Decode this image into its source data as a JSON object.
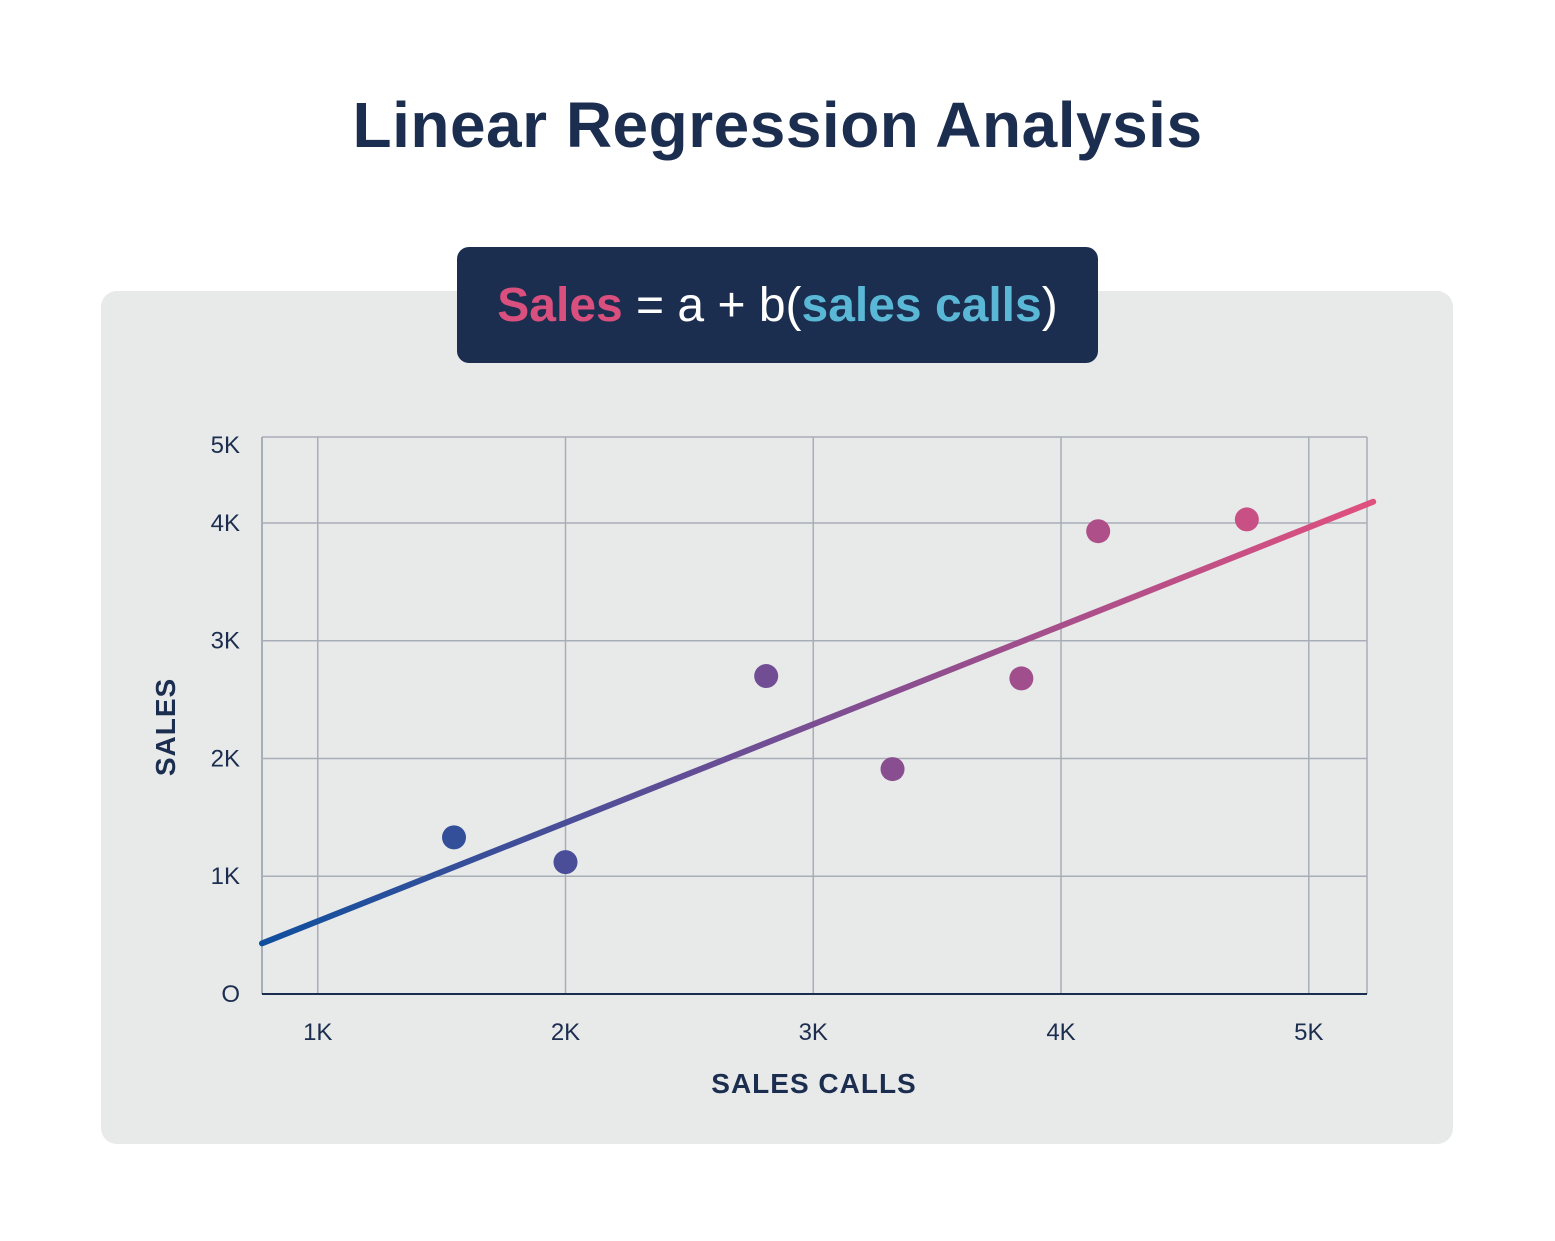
{
  "title": "Linear Regression Analysis",
  "formula": {
    "dependent": "Sales",
    "middle": " = a + b(",
    "independent": "sales calls",
    "close": ")"
  },
  "colors": {
    "title": "#1c2e4f",
    "panel": "#e8e9e9",
    "formula_bg": "#1c2e4f",
    "sales": "#d9507f",
    "sales_calls": "#5ab8d6",
    "line_start": "#0f4f9e",
    "line_mid": "#7b4e93",
    "line_end": "#e0507f",
    "grid": "#a8aeb8"
  },
  "chart_data": {
    "type": "scatter",
    "xlabel": "SALES CALLS",
    "ylabel": "SALES",
    "x_ticks": [
      "1K",
      "2K",
      "3K",
      "4K",
      "5K"
    ],
    "x_tick_values": [
      1000,
      2000,
      3000,
      4000,
      5000
    ],
    "y_ticks": [
      "O",
      "1K",
      "2K",
      "3K",
      "4K",
      "5K"
    ],
    "y_tick_values": [
      0,
      1000,
      2000,
      3000,
      4000,
      5000
    ],
    "xlim": [
      775,
      5235
    ],
    "ylim": [
      0,
      4730
    ],
    "grid": true,
    "points": [
      {
        "x": 1550,
        "y": 1330
      },
      {
        "x": 2000,
        "y": 1120
      },
      {
        "x": 2810,
        "y": 2700
      },
      {
        "x": 3320,
        "y": 1910
      },
      {
        "x": 3840,
        "y": 2680
      },
      {
        "x": 4150,
        "y": 3930
      },
      {
        "x": 4750,
        "y": 4030
      }
    ],
    "regression_line": {
      "x": [
        775,
        5260
      ],
      "y": [
        430,
        4180
      ]
    }
  }
}
